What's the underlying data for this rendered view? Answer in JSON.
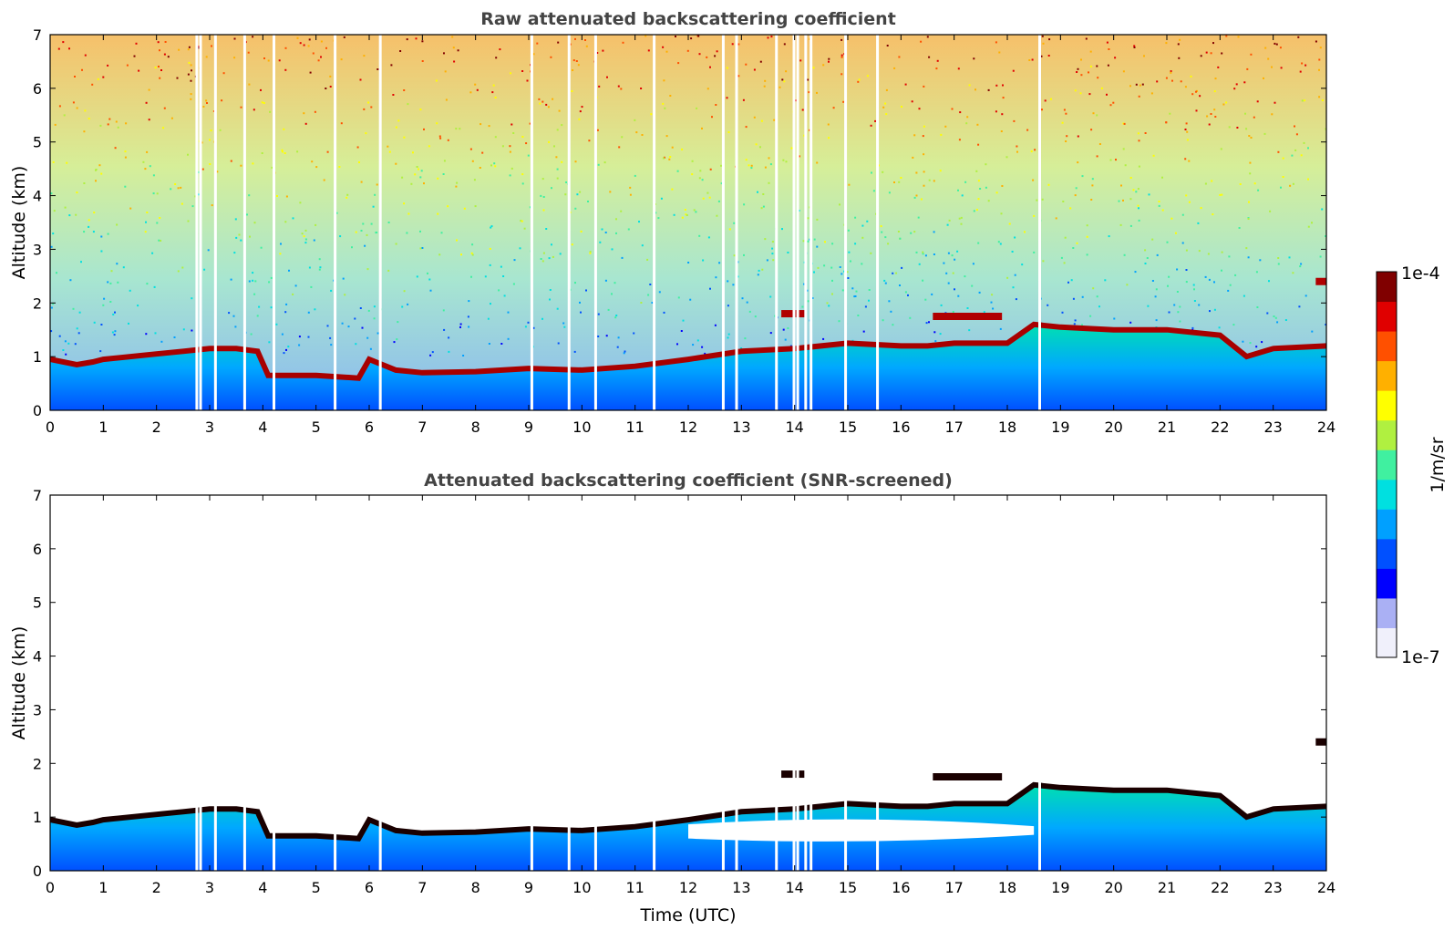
{
  "chart_data": [
    {
      "type": "heatmap",
      "title": "Raw attenuated backscattering coefficient",
      "xlabel": "",
      "ylabel": "Altitude (km)",
      "xlim": [
        0,
        24
      ],
      "ylim": [
        0,
        7
      ],
      "x_ticks": [
        "0",
        "1",
        "2",
        "3",
        "4",
        "5",
        "6",
        "7",
        "8",
        "9",
        "10",
        "11",
        "12",
        "13",
        "14",
        "15",
        "16",
        "17",
        "18",
        "19",
        "20",
        "21",
        "22",
        "23",
        "24"
      ],
      "y_ticks": [
        "0",
        "1",
        "2",
        "3",
        "4",
        "5",
        "6",
        "7"
      ],
      "layer_top_km": {
        "time_utc": [
          0,
          0.5,
          0.8,
          1,
          2,
          2.5,
          3,
          3.5,
          3.9,
          4.1,
          5,
          5.8,
          6,
          6.5,
          7,
          8,
          9,
          10,
          11,
          12,
          13,
          14,
          15,
          16,
          16.5,
          17,
          18,
          18.5,
          19,
          20,
          21,
          22,
          22.5,
          23,
          24
        ],
        "altitude_km": [
          0.95,
          0.85,
          0.9,
          0.95,
          1.05,
          1.1,
          1.15,
          1.15,
          1.1,
          0.65,
          0.65,
          0.6,
          0.95,
          0.75,
          0.7,
          0.72,
          0.78,
          0.75,
          0.82,
          0.95,
          1.1,
          1.15,
          1.25,
          1.2,
          1.2,
          1.25,
          1.25,
          1.6,
          1.55,
          1.5,
          1.5,
          1.4,
          1.0,
          1.15,
          1.2
        ]
      },
      "elevated_layers": [
        {
          "time_start": 13.75,
          "time_end": 14.2,
          "altitude_km": 1.8
        },
        {
          "time_start": 16.6,
          "time_end": 17.9,
          "altitude_km": 1.75
        },
        {
          "time_start": 23.8,
          "time_end": 24,
          "altitude_km": 2.4
        }
      ],
      "missing_data_time_utc": [
        2.75,
        2.82,
        3.1,
        3.65,
        4.2,
        5.35,
        6.2,
        9.05,
        9.75,
        10.25,
        11.35,
        12.65,
        12.9,
        13.65,
        13.98,
        14.05,
        14.2,
        14.3,
        14.95,
        15.55,
        18.6
      ]
    },
    {
      "type": "heatmap",
      "title": "Attenuated backscattering coefficient (SNR-screened)",
      "xlabel": "Time (UTC)",
      "ylabel": "Altitude (km)",
      "xlim": [
        0,
        24
      ],
      "ylim": [
        0,
        7
      ],
      "x_ticks": [
        "0",
        "1",
        "2",
        "3",
        "4",
        "5",
        "6",
        "7",
        "8",
        "9",
        "10",
        "11",
        "12",
        "13",
        "14",
        "15",
        "16",
        "17",
        "18",
        "19",
        "20",
        "21",
        "22",
        "23",
        "24"
      ],
      "y_ticks": [
        "0",
        "1",
        "2",
        "3",
        "4",
        "5",
        "6",
        "7"
      ],
      "screened_gap_km": {
        "time_start": 12,
        "time_end": 18.5,
        "altitude_range": [
          0.6,
          1.0
        ]
      }
    }
  ],
  "colorbar": {
    "label": "1/m/sr",
    "max_label": "1e-4",
    "min_label": "1e-7",
    "colormap": [
      "#f0f0fb",
      "#aab0f4",
      "#0000ff",
      "#0050ff",
      "#00a0ff",
      "#00e0e0",
      "#40f0a0",
      "#b0f040",
      "#ffff00",
      "#ffb000",
      "#ff5000",
      "#e00000",
      "#800000"
    ]
  }
}
